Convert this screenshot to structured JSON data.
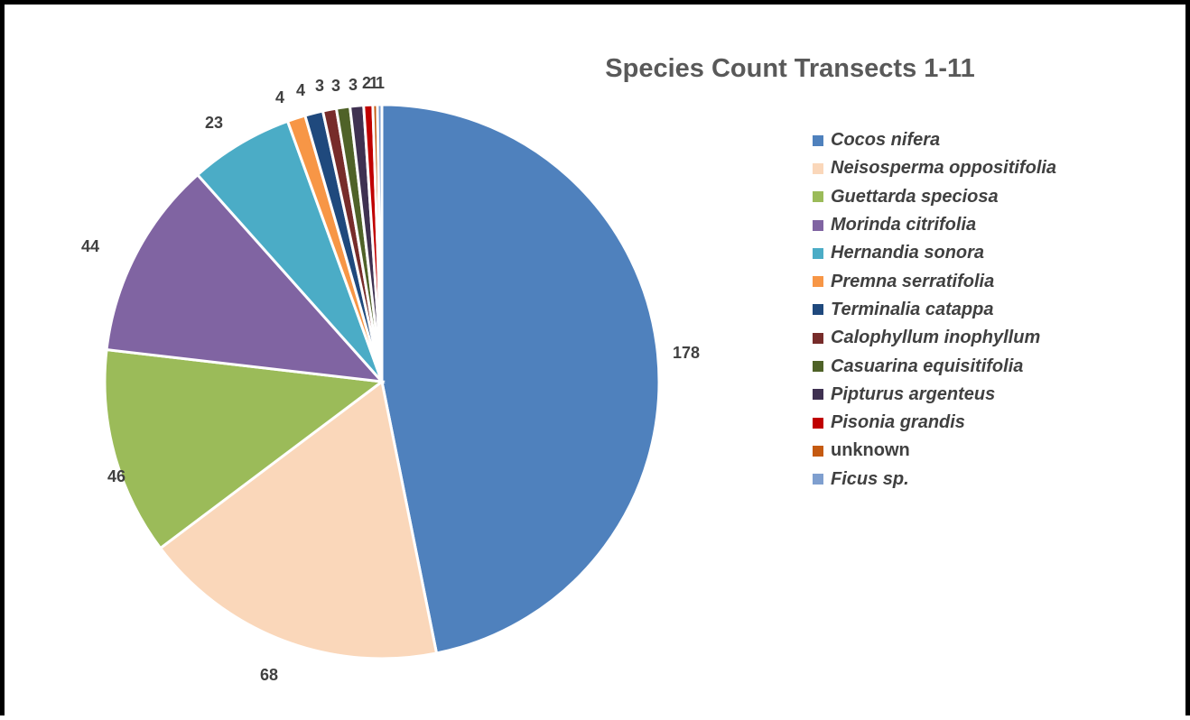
{
  "chart_data": {
    "type": "pie",
    "title": "Species Count Transects 1-11",
    "legend_position": "right",
    "slices": [
      {
        "name": "Cocos nifera",
        "value": 178,
        "color": "#4F81BD",
        "italic": true
      },
      {
        "name": "Neisosperma oppositifolia",
        "value": 68,
        "color": "#FAD7BA",
        "italic": true
      },
      {
        "name": "Guettarda speciosa",
        "value": 46,
        "color": "#9BBB59",
        "italic": true
      },
      {
        "name": "Morinda citrifolia",
        "value": 44,
        "color": "#8064A2",
        "italic": true
      },
      {
        "name": "Hernandia sonora",
        "value": 23,
        "color": "#4BACC6",
        "italic": true
      },
      {
        "name": "Premna serratifolia",
        "value": 4,
        "color": "#F79646",
        "italic": true
      },
      {
        "name": "Terminalia catappa",
        "value": 4,
        "color": "#1F497D",
        "italic": true
      },
      {
        "name": "Calophyllum inophyllum",
        "value": 3,
        "color": "#772C2A",
        "italic": true
      },
      {
        "name": "Casuarina equisitifolia",
        "value": 3,
        "color": "#4F6228",
        "italic": true
      },
      {
        "name": "Pipturus argenteus",
        "value": 3,
        "color": "#3F3151",
        "italic": true
      },
      {
        "name": "Pisonia grandis",
        "value": 2,
        "color": "#C00000",
        "italic": true
      },
      {
        "name": "unknown",
        "value": 1,
        "color": "#C55A11",
        "italic": false
      },
      {
        "name": "Ficus sp.",
        "value": 1,
        "color": "#7F9FCF",
        "italic": true
      }
    ]
  }
}
